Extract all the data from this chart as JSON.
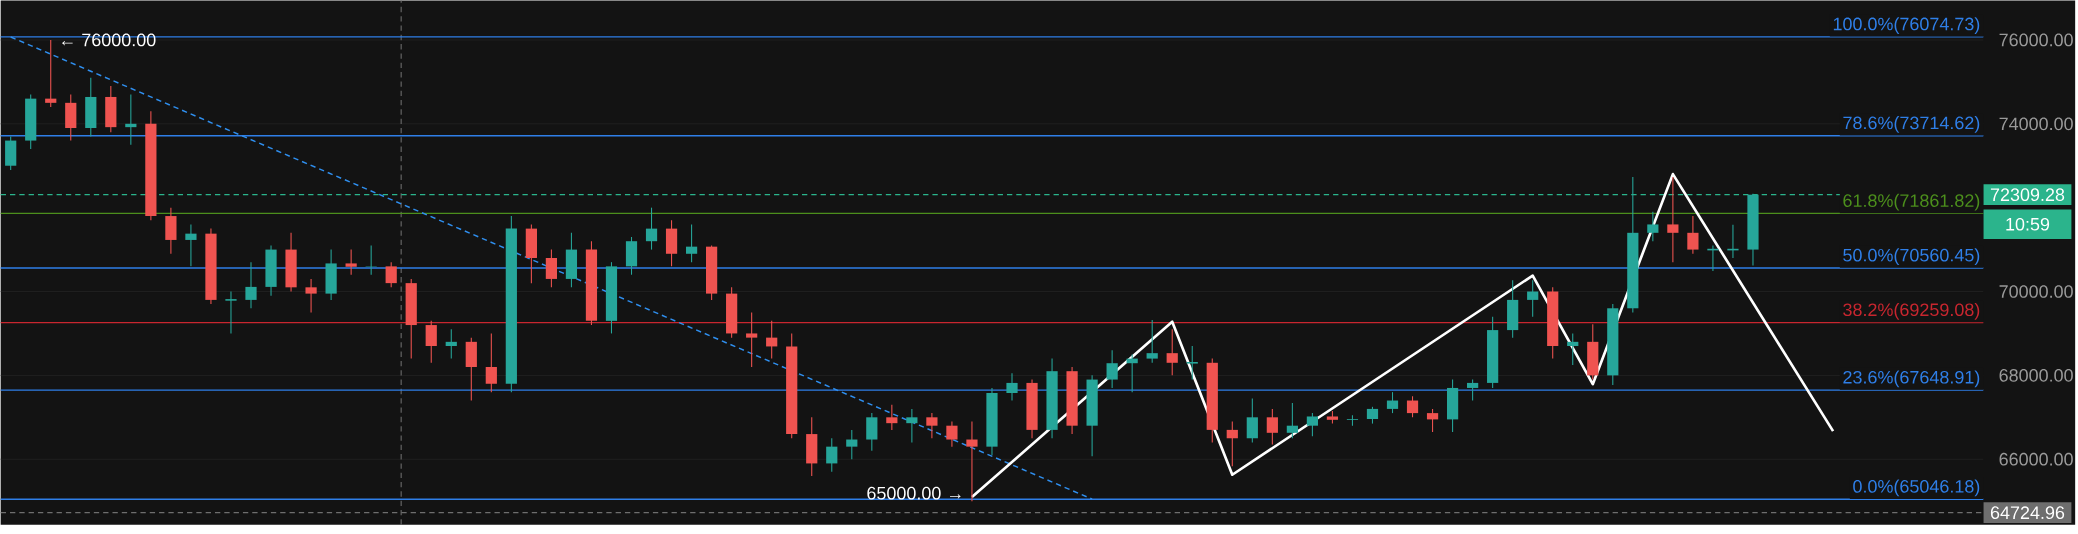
{
  "chart_data": {
    "type": "candlestick",
    "categories": [
      null,
      null,
      null,
      null,
      null,
      null,
      null,
      null,
      null,
      null,
      null,
      null,
      null,
      null,
      null,
      null,
      null,
      null,
      null,
      null,
      null,
      null,
      null,
      null,
      null,
      null,
      null,
      null,
      null,
      null,
      null,
      null,
      null,
      null,
      null,
      null,
      null,
      null,
      null,
      null,
      null,
      null,
      null,
      null,
      null,
      null,
      null,
      null,
      null,
      null,
      null,
      null,
      null,
      null,
      null,
      null,
      null,
      null,
      null,
      null,
      null,
      null,
      null,
      null,
      null,
      null,
      null,
      null,
      null,
      null,
      null,
      null,
      null,
      null,
      null,
      null,
      null,
      null,
      null,
      null,
      null,
      null,
      null,
      null,
      null,
      null,
      null,
      null,
      null,
      null,
      null,
      null,
      null,
      null,
      null,
      null,
      null,
      null,
      null
    ],
    "ohlc": [
      [
        73000,
        73700,
        72900,
        73600
      ],
      [
        73600,
        74700,
        73400,
        74600
      ],
      [
        74600,
        76000,
        74400,
        74500
      ],
      [
        74500,
        74700,
        73600,
        73900
      ],
      [
        73900,
        75100,
        73700,
        74640
      ],
      [
        74640,
        74900,
        73800,
        73920
      ],
      [
        73920,
        74700,
        73500,
        74000
      ],
      [
        74000,
        74300,
        71700,
        71800
      ],
      [
        71800,
        72000,
        70900,
        71230
      ],
      [
        71230,
        71600,
        70600,
        71380
      ],
      [
        71380,
        71500,
        69700,
        69800
      ],
      [
        69800,
        70000,
        69000,
        69800
      ],
      [
        69800,
        70700,
        69600,
        70110
      ],
      [
        70110,
        71100,
        69900,
        71000
      ],
      [
        71000,
        71400,
        70000,
        70100
      ],
      [
        70100,
        70300,
        69500,
        69950
      ],
      [
        69950,
        71000,
        69800,
        70670
      ],
      [
        70670,
        71000,
        70400,
        70590
      ],
      [
        70590,
        71100,
        70400,
        70600
      ],
      [
        70600,
        70700,
        70100,
        70200
      ],
      [
        70200,
        70300,
        68400,
        69200
      ],
      [
        69200,
        69300,
        68300,
        68700
      ],
      [
        68700,
        69100,
        68400,
        68800
      ],
      [
        68800,
        68900,
        67400,
        68200
      ],
      [
        68200,
        69000,
        67600,
        67800
      ],
      [
        67800,
        71800,
        67600,
        71500
      ],
      [
        71500,
        71600,
        70200,
        70800
      ],
      [
        70800,
        71000,
        70100,
        70300
      ],
      [
        70300,
        71400,
        70100,
        71000
      ],
      [
        71000,
        71200,
        69200,
        69300
      ],
      [
        69300,
        70700,
        69000,
        70600
      ],
      [
        70600,
        71300,
        70400,
        71200
      ],
      [
        71200,
        72000,
        71000,
        71500
      ],
      [
        71500,
        71700,
        70600,
        70900
      ],
      [
        70900,
        71600,
        70700,
        71070
      ],
      [
        71070,
        71100,
        69800,
        69950
      ],
      [
        69950,
        70100,
        68900,
        69000
      ],
      [
        69000,
        69500,
        68200,
        68900
      ],
      [
        68900,
        69300,
        68400,
        68690
      ],
      [
        68690,
        69000,
        66500,
        66600
      ],
      [
        66600,
        67000,
        65600,
        65900
      ],
      [
        65900,
        66500,
        65700,
        66300
      ],
      [
        66300,
        66700,
        66000,
        66470
      ],
      [
        66470,
        67100,
        66200,
        67000
      ],
      [
        67000,
        67300,
        66700,
        66860
      ],
      [
        66860,
        67200,
        66400,
        67000
      ],
      [
        67000,
        67100,
        66500,
        66800
      ],
      [
        66800,
        66900,
        66300,
        66470
      ],
      [
        66470,
        66900,
        65000,
        66300
      ],
      [
        66300,
        67700,
        66100,
        67580
      ],
      [
        67580,
        68050,
        67400,
        67820
      ],
      [
        67820,
        67900,
        66500,
        66700
      ],
      [
        66700,
        68400,
        66500,
        68100
      ],
      [
        68100,
        68200,
        66600,
        66800
      ],
      [
        66800,
        68000,
        66070,
        67900
      ],
      [
        67900,
        68600,
        67700,
        68290
      ],
      [
        68290,
        68500,
        67600,
        68400
      ],
      [
        68400,
        69320,
        68300,
        68530
      ],
      [
        68530,
        69100,
        68000,
        68300
      ],
      [
        68300,
        68700,
        67900,
        68300
      ],
      [
        68300,
        68400,
        66400,
        66700
      ],
      [
        66700,
        66900,
        65830,
        66500
      ],
      [
        66500,
        67450,
        66400,
        67000
      ],
      [
        67000,
        67200,
        66350,
        66630
      ],
      [
        66630,
        67340,
        66500,
        66800
      ],
      [
        66800,
        67100,
        66550,
        67020
      ],
      [
        67020,
        67150,
        66850,
        66940
      ],
      [
        66940,
        67050,
        66800,
        66960
      ],
      [
        66960,
        67250,
        66850,
        67200
      ],
      [
        67200,
        67600,
        67100,
        67400
      ],
      [
        67400,
        67500,
        67000,
        67100
      ],
      [
        67100,
        67200,
        66650,
        66950
      ],
      [
        66950,
        67900,
        66650,
        67700
      ],
      [
        67700,
        67900,
        67400,
        67820
      ],
      [
        67820,
        69400,
        67700,
        69080
      ],
      [
        69080,
        70270,
        68900,
        69800
      ],
      [
        69800,
        70270,
        69400,
        70000
      ],
      [
        70000,
        70100,
        68400,
        68700
      ],
      [
        68700,
        69000,
        68250,
        68800
      ],
      [
        68800,
        69220,
        67900,
        68000
      ],
      [
        68000,
        69700,
        67770,
        69600
      ],
      [
        69600,
        72730,
        69500,
        71400
      ],
      [
        71400,
        71900,
        71200,
        71600
      ],
      [
        71600,
        72730,
        70700,
        71400
      ],
      [
        71400,
        71800,
        70900,
        71000
      ],
      [
        71000,
        71100,
        70490,
        71000
      ],
      [
        71000,
        71590,
        70800,
        71000
      ],
      [
        71000,
        72330,
        70620,
        72309.28
      ],
      null,
      null,
      null,
      null,
      null,
      null,
      null,
      null,
      null,
      null,
      null
    ],
    "series": [
      {
        "type": "line",
        "values": [
          76070,
          null,
          null,
          null,
          null,
          null,
          null,
          null,
          null,
          null,
          null,
          null,
          null,
          null,
          null,
          null,
          null,
          null,
          null,
          null,
          null,
          null,
          null,
          null,
          null,
          null,
          null,
          null,
          null,
          null,
          null,
          null,
          null,
          null,
          null,
          null,
          null,
          null,
          null,
          null,
          null,
          null,
          null,
          null,
          null,
          null,
          null,
          null,
          null,
          null,
          null,
          null,
          null,
          null,
          65050,
          null,
          null,
          null,
          null,
          null,
          null,
          null,
          null,
          null,
          null,
          null,
          null,
          null,
          null,
          null,
          null,
          null,
          null,
          null,
          null,
          null,
          null,
          null,
          null,
          null,
          null,
          null,
          null,
          null,
          null,
          null,
          null,
          null,
          null,
          null,
          null,
          null,
          null,
          null,
          null,
          null,
          null,
          null,
          null
        ],
        "color": "#2f8fef",
        "line_style": "dashed"
      },
      {
        "type": "line",
        "values": [
          null,
          null,
          null,
          null,
          null,
          null,
          null,
          null,
          null,
          null,
          null,
          null,
          null,
          null,
          null,
          null,
          null,
          null,
          null,
          null,
          null,
          null,
          null,
          null,
          null,
          null,
          null,
          null,
          null,
          null,
          null,
          null,
          null,
          null,
          null,
          null,
          null,
          null,
          null,
          null,
          null,
          null,
          null,
          null,
          null,
          null,
          null,
          null,
          65100,
          null,
          null,
          null,
          null,
          null,
          null,
          null,
          null,
          null,
          69280,
          null,
          null,
          65630,
          null,
          null,
          null,
          null,
          null,
          null,
          null,
          null,
          null,
          null,
          null,
          null,
          null,
          null,
          70380,
          null,
          null,
          67790,
          null,
          null,
          null,
          72800,
          null,
          null,
          null,
          null,
          null,
          null,
          null,
          66670,
          null,
          null,
          null,
          null,
          null,
          null,
          null
        ],
        "color": "#ffffff",
        "line_style": "solid"
      }
    ],
    "ref_lines": [
      {
        "axis": "y",
        "value": 76074.73,
        "label": "100.0%(76074.73)",
        "color": "#2f7fe8",
        "line_style": "solid"
      },
      {
        "axis": "y",
        "value": 73714.62,
        "label": "78.6%(73714.62)",
        "color": "#2f7fe8",
        "line_style": "solid"
      },
      {
        "axis": "y",
        "value": 71861.82,
        "label": "61.8%(71861.82)",
        "color": "#4c8f1c",
        "line_style": "solid"
      },
      {
        "axis": "y",
        "value": 70560.45,
        "label": "50.0%(70560.45)",
        "color": "#2f7fe8",
        "line_style": "solid"
      },
      {
        "axis": "y",
        "value": 69259.08,
        "label": "38.2%(69259.08)",
        "color": "#c8262f",
        "line_style": "solid"
      },
      {
        "axis": "y",
        "value": 67648.91,
        "label": "23.6%(67648.91)",
        "color": "#2f7fe8",
        "line_style": "solid"
      },
      {
        "axis": "y",
        "value": 65046.18,
        "label": "0.0%(65046.18)",
        "color": "#2f7fe8",
        "line_style": "solid"
      },
      {
        "axis": "y",
        "value": 72309.28,
        "label": "72309.28",
        "color": "#2bb48c",
        "line_style": "dashed"
      },
      {
        "axis": "y",
        "value": 64724.96,
        "label": "64724.96",
        "color": "#6e6e6e",
        "line_style": "dashed"
      }
    ],
    "annotations": [
      {
        "text": "← 76000.00",
        "y": 76000
      },
      {
        "text": "65000.00 →",
        "y": 65000
      },
      "10:59"
    ],
    "ylim": [
      64440,
      76940
    ],
    "yticks": [
      {
        "value": 66000,
        "label": "66000.00"
      },
      {
        "value": 68000,
        "label": "68000.00"
      },
      {
        "value": 70000,
        "label": "70000.00"
      },
      {
        "value": 74000,
        "label": "74000.00"
      },
      {
        "value": 76000,
        "label": "76000.00"
      }
    ],
    "grid": "y",
    "tick_labels": "y"
  }
}
